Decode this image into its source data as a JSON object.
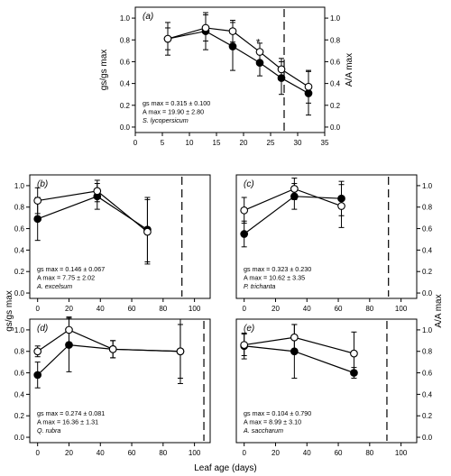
{
  "figure": {
    "shared_ylabel_left": "gs/gs max",
    "shared_ylabel_right": "A/A max",
    "shared_xlabel": "Leaf age (days)",
    "colors": {
      "filled_marker": "#000000",
      "open_marker_fill": "#ffffff",
      "line": "#000000",
      "background": "#ffffff"
    }
  },
  "chart_data": [
    {
      "type": "line",
      "panel": "(a)",
      "species": "S. lycopersicum",
      "stats": [
        "gs max = 0.315 ± 0.100",
        "A max = 19.90 ± 2.80"
      ],
      "ylabel_left": "gs/gs max",
      "ylabel_right": "A/A max",
      "xlim": [
        0,
        35
      ],
      "xticks": [
        0,
        5,
        10,
        15,
        20,
        25,
        30,
        35
      ],
      "ylim": [
        -0.05,
        1.1
      ],
      "yticks": [
        0.0,
        0.2,
        0.4,
        0.6,
        0.8,
        1.0
      ],
      "ytick_labels_left": [
        "0.0",
        "0.2",
        "0.4",
        "0.6",
        "0.8",
        "1.0"
      ],
      "ytick_labels_right": [
        "0.0",
        "0.2",
        "0.4",
        "0.6",
        "0.8",
        "1.0"
      ],
      "dashed_line_x": 27.5,
      "annotation": {
        "text": "*",
        "x": 22.7,
        "y": 0.78
      },
      "series": [
        {
          "marker": "filled",
          "x": [
            6,
            13,
            18,
            23,
            27,
            32
          ],
          "y": [
            0.81,
            0.88,
            0.74,
            0.59,
            0.45,
            0.31
          ],
          "err": [
            0.15,
            0.17,
            0.22,
            0.12,
            0.15,
            0.2
          ]
        },
        {
          "marker": "open",
          "x": [
            6,
            13,
            18,
            23,
            27,
            32
          ],
          "y": [
            0.81,
            0.91,
            0.88,
            0.69,
            0.53,
            0.37
          ],
          "err": [
            0.1,
            0.12,
            0.1,
            0.08,
            0.1,
            0.15
          ]
        }
      ]
    },
    {
      "type": "line",
      "panel": "(b)",
      "species": "A. excelsum",
      "stats": [
        "gs max = 0.146 ± 0.067",
        "A max = 7.75 ± 2.02"
      ],
      "xlim": [
        -5,
        110
      ],
      "xticks": [
        0,
        20,
        40,
        60,
        80,
        100
      ],
      "ylim": [
        -0.05,
        1.1
      ],
      "yticks": [
        0.0,
        0.2,
        0.4,
        0.6,
        0.8,
        1.0
      ],
      "ytick_labels_left": [
        "0.0",
        "0.2",
        "0.4",
        "0.6",
        "0.8",
        "1.0"
      ],
      "dashed_line_x": 92,
      "series": [
        {
          "marker": "filled",
          "x": [
            0,
            38,
            70
          ],
          "y": [
            0.69,
            0.9,
            0.59
          ],
          "err": [
            0.2,
            0.12,
            0.3
          ]
        },
        {
          "marker": "open",
          "x": [
            0,
            38,
            70
          ],
          "y": [
            0.86,
            0.95,
            0.57
          ],
          "err": [
            0.12,
            0.1,
            0.3
          ]
        }
      ]
    },
    {
      "type": "line",
      "panel": "(c)",
      "species": "P. trichanta",
      "stats": [
        "gs max = 0.323 ± 0.230",
        "A max = 10.62 ± 3.35"
      ],
      "xlim": [
        -5,
        110
      ],
      "xticks": [
        0,
        20,
        40,
        60,
        80,
        100
      ],
      "ylim": [
        -0.05,
        1.1
      ],
      "yticks": [
        0.0,
        0.2,
        0.4,
        0.6,
        0.8,
        1.0
      ],
      "ytick_labels_right": [
        "0.0",
        "0.2",
        "0.4",
        "0.6",
        "0.8",
        "1.0"
      ],
      "dashed_line_x": 92,
      "series": [
        {
          "marker": "filled",
          "x": [
            0,
            32,
            62
          ],
          "y": [
            0.55,
            0.9,
            0.88
          ],
          "err": [
            0.12,
            0.12,
            0.16
          ]
        },
        {
          "marker": "open",
          "x": [
            0,
            32,
            62
          ],
          "y": [
            0.77,
            0.97,
            0.81
          ],
          "err": [
            0.12,
            0.1,
            0.2
          ]
        }
      ]
    },
    {
      "type": "line",
      "panel": "(d)",
      "species": "Q. rubra",
      "stats": [
        "gs max = 0.274 ± 0.081",
        "A max = 16.36 ± 1.31"
      ],
      "xlim": [
        -5,
        110
      ],
      "xticks": [
        0,
        20,
        40,
        60,
        80,
        100
      ],
      "ylim": [
        -0.05,
        1.1
      ],
      "yticks": [
        0.0,
        0.2,
        0.4,
        0.6,
        0.8,
        1.0
      ],
      "ytick_labels_left": [
        "0.0",
        "0.2",
        "0.4",
        "0.6",
        "0.8",
        "1.0"
      ],
      "dashed_line_x": 106,
      "series": [
        {
          "marker": "filled",
          "x": [
            0,
            20,
            48,
            91
          ],
          "y": [
            0.58,
            0.86,
            0.82,
            0.8
          ],
          "err": [
            0.12,
            0.25,
            0.08,
            0.3
          ]
        },
        {
          "marker": "open",
          "x": [
            0,
            20,
            48,
            91
          ],
          "y": [
            0.8,
            1.0,
            0.82,
            0.8
          ],
          "err": [
            0.05,
            0.12,
            0.08,
            0.25
          ]
        }
      ]
    },
    {
      "type": "line",
      "panel": "(e)",
      "species": "A. saccharum",
      "stats": [
        "gs max = 0.104 ± 0.790",
        "A max = 8.99 ± 3.10"
      ],
      "xlim": [
        -5,
        110
      ],
      "xticks": [
        0,
        20,
        40,
        60,
        80,
        100
      ],
      "ylim": [
        -0.05,
        1.1
      ],
      "yticks": [
        0.0,
        0.2,
        0.4,
        0.6,
        0.8,
        1.0
      ],
      "ytick_labels_right": [
        "0.0",
        "0.2",
        "0.4",
        "0.6",
        "0.8",
        "1.0"
      ],
      "dashed_line_x": 91,
      "series": [
        {
          "marker": "filled",
          "x": [
            0,
            32,
            70
          ],
          "y": [
            0.85,
            0.8,
            0.6
          ],
          "err": [
            0.12,
            0.25,
            0.05
          ]
        },
        {
          "marker": "open",
          "x": [
            0,
            32,
            70
          ],
          "y": [
            0.86,
            0.93,
            0.78
          ],
          "err": [
            0.1,
            0.12,
            0.2
          ]
        }
      ]
    }
  ]
}
